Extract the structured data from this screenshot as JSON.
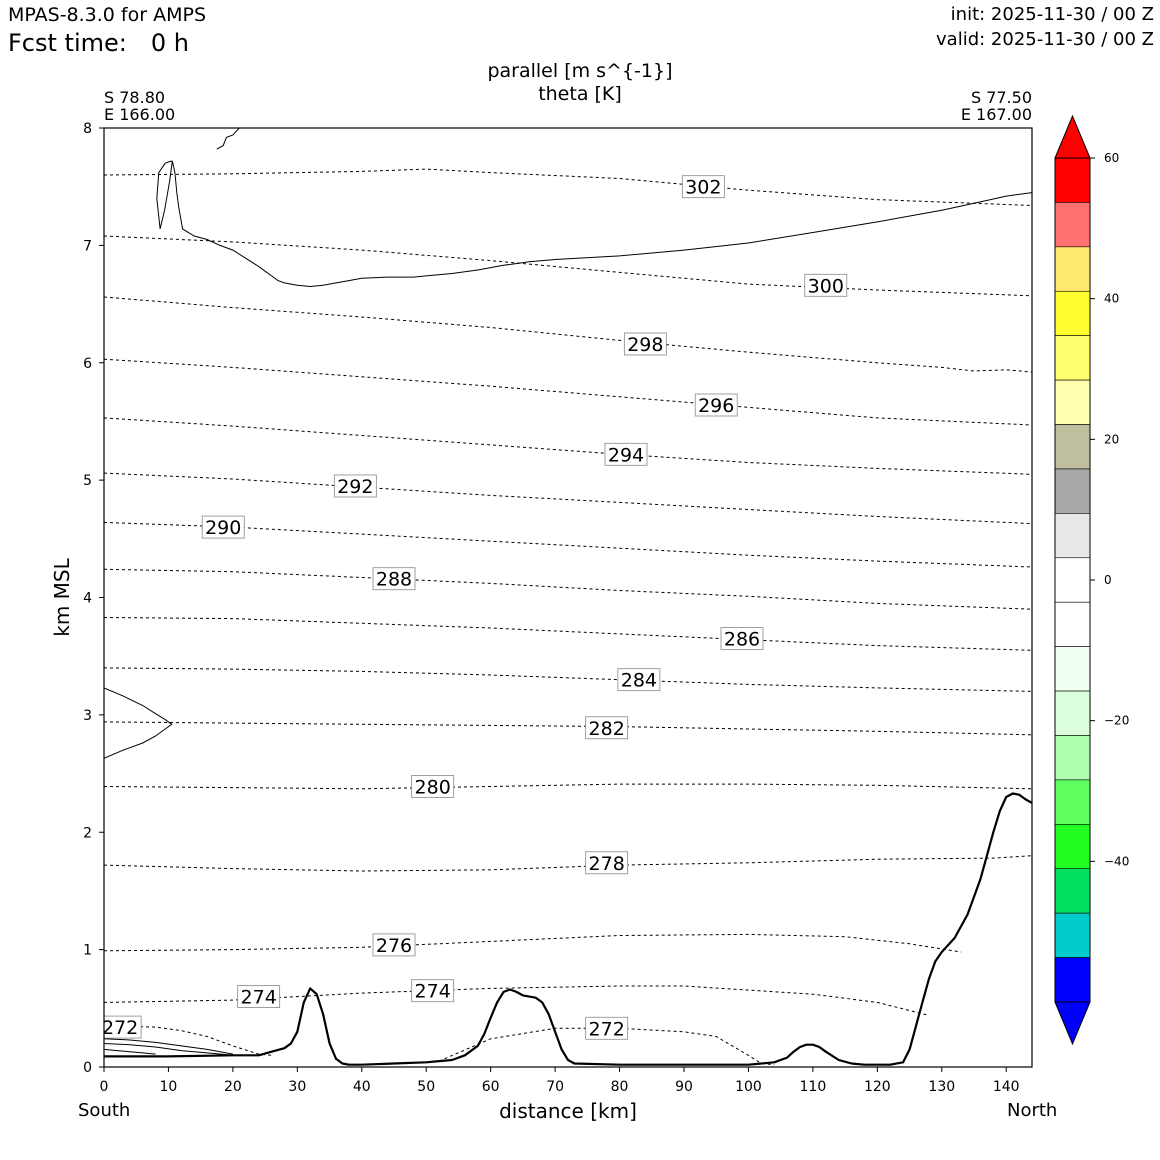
{
  "header": {
    "model": "MPAS-8.3.0 for AMPS",
    "fcst_label": "Fcst time:",
    "fcst_value": "0 h",
    "init": "init: 2025-11-30 / 00 Z",
    "valid": "valid: 2025-11-30 / 00 Z"
  },
  "corners": {
    "left_lat": "S 78.80",
    "left_lon": "E 166.00",
    "right_lat": "S 77.50",
    "right_lon": "E 167.00"
  },
  "directions": {
    "left": "South",
    "right": "North"
  },
  "chart_data": {
    "type": "line",
    "title": "parallel [m s^{-1}]",
    "subtitle": "theta [K]",
    "xlabel": "distance [km]",
    "ylabel": "km MSL",
    "xlim": [
      0,
      144
    ],
    "ylim": [
      0,
      8
    ],
    "xticks": [
      0,
      10,
      20,
      30,
      40,
      50,
      60,
      70,
      80,
      90,
      100,
      110,
      120,
      130,
      140
    ],
    "yticks": [
      0,
      1,
      2,
      3,
      4,
      5,
      6,
      7,
      8
    ],
    "terrain": {
      "name": "terrain height",
      "x": [
        0,
        10,
        20,
        24,
        26,
        28,
        29,
        30,
        31,
        32,
        33,
        34,
        35,
        36,
        37,
        38,
        40,
        45,
        50,
        52,
        54,
        56,
        58,
        59,
        60,
        61,
        62,
        63,
        64,
        65,
        66,
        67,
        68,
        69,
        70,
        71,
        72,
        73,
        80,
        90,
        100,
        104,
        106,
        107,
        108,
        109,
        110,
        111,
        112,
        114,
        116,
        118,
        120,
        122,
        124,
        125,
        126,
        127,
        128,
        129,
        130,
        132,
        134,
        136,
        137,
        138,
        139,
        140,
        141,
        142,
        143,
        144
      ],
      "y": [
        0.09,
        0.09,
        0.1,
        0.1,
        0.13,
        0.16,
        0.2,
        0.3,
        0.55,
        0.67,
        0.62,
        0.45,
        0.2,
        0.07,
        0.03,
        0.02,
        0.02,
        0.03,
        0.04,
        0.05,
        0.06,
        0.1,
        0.18,
        0.28,
        0.42,
        0.55,
        0.64,
        0.66,
        0.64,
        0.61,
        0.6,
        0.59,
        0.55,
        0.45,
        0.3,
        0.15,
        0.06,
        0.03,
        0.02,
        0.02,
        0.02,
        0.04,
        0.08,
        0.13,
        0.17,
        0.19,
        0.19,
        0.17,
        0.13,
        0.06,
        0.03,
        0.02,
        0.02,
        0.02,
        0.04,
        0.15,
        0.35,
        0.55,
        0.75,
        0.9,
        0.98,
        1.1,
        1.3,
        1.6,
        1.8,
        2.0,
        2.18,
        2.3,
        2.33,
        2.32,
        2.28,
        2.25
      ]
    },
    "isentropes": [
      {
        "value": 272,
        "x": [
          0,
          8,
          12,
          16,
          20,
          24,
          26
        ],
        "y": [
          0.35,
          0.34,
          0.31,
          0.26,
          0.18,
          0.11,
          0.1
        ],
        "labels": [
          [
            2.5,
            0.34
          ]
        ]
      },
      {
        "value": 272,
        "x": [
          52,
          60,
          70,
          80,
          90,
          95,
          100,
          102,
          104
        ],
        "y": [
          0.05,
          0.24,
          0.33,
          0.33,
          0.3,
          0.26,
          0.1,
          0.03,
          0.02
        ],
        "labels": [
          [
            78,
            0.33
          ]
        ]
      },
      {
        "value": 274,
        "x": [
          0,
          10,
          20,
          30,
          40,
          60,
          80,
          90,
          110,
          120,
          128
        ],
        "y": [
          0.55,
          0.56,
          0.57,
          0.6,
          0.63,
          0.67,
          0.69,
          0.69,
          0.62,
          0.55,
          0.44
        ],
        "labels": [
          [
            24,
            0.6
          ],
          [
            51,
            0.65
          ]
        ]
      },
      {
        "value": 276,
        "x": [
          0,
          20,
          40,
          60,
          80,
          100,
          115,
          125,
          133
        ],
        "y": [
          0.99,
          1.0,
          1.02,
          1.07,
          1.12,
          1.13,
          1.11,
          1.05,
          0.98
        ],
        "labels": [
          [
            45,
            1.04
          ]
        ]
      },
      {
        "value": 278,
        "x": [
          0,
          20,
          40,
          60,
          80,
          100,
          120,
          138,
          144
        ],
        "y": [
          1.72,
          1.69,
          1.67,
          1.68,
          1.72,
          1.74,
          1.77,
          1.78,
          1.8
        ],
        "labels": [
          [
            78,
            1.74
          ]
        ]
      },
      {
        "value": 280,
        "x": [
          0,
          20,
          40,
          60,
          80,
          100,
          120,
          144
        ],
        "y": [
          2.39,
          2.38,
          2.37,
          2.39,
          2.41,
          2.41,
          2.4,
          2.37
        ],
        "labels": [
          [
            51,
            2.39
          ]
        ]
      },
      {
        "value": 282,
        "x": [
          0,
          20,
          40,
          60,
          80,
          100,
          120,
          144
        ],
        "y": [
          2.94,
          2.93,
          2.92,
          2.91,
          2.9,
          2.88,
          2.86,
          2.83
        ],
        "labels": [
          [
            78,
            2.89
          ]
        ]
      },
      {
        "value": 284,
        "x": [
          0,
          20,
          40,
          60,
          80,
          100,
          120,
          144
        ],
        "y": [
          3.4,
          3.39,
          3.37,
          3.34,
          3.3,
          3.26,
          3.23,
          3.2
        ],
        "labels": [
          [
            83,
            3.3
          ]
        ]
      },
      {
        "value": 286,
        "x": [
          0,
          20,
          40,
          60,
          80,
          100,
          120,
          144
        ],
        "y": [
          3.83,
          3.82,
          3.78,
          3.74,
          3.69,
          3.64,
          3.59,
          3.55
        ],
        "labels": [
          [
            99,
            3.65
          ]
        ]
      },
      {
        "value": 288,
        "x": [
          0,
          20,
          40,
          60,
          80,
          100,
          120,
          144
        ],
        "y": [
          4.24,
          4.22,
          4.17,
          4.12,
          4.06,
          4.01,
          3.95,
          3.9
        ],
        "labels": [
          [
            45,
            4.16
          ]
        ]
      },
      {
        "value": 290,
        "x": [
          0,
          20,
          40,
          60,
          80,
          100,
          120,
          144
        ],
        "y": [
          4.64,
          4.6,
          4.54,
          4.48,
          4.42,
          4.36,
          4.31,
          4.26
        ],
        "labels": [
          [
            18.5,
            4.6
          ]
        ]
      },
      {
        "value": 292,
        "x": [
          0,
          20,
          40,
          60,
          80,
          100,
          120,
          144
        ],
        "y": [
          5.06,
          5.01,
          4.94,
          4.87,
          4.81,
          4.75,
          4.69,
          4.63
        ],
        "labels": [
          [
            39,
            4.95
          ]
        ]
      },
      {
        "value": 294,
        "x": [
          0,
          20,
          40,
          60,
          80,
          100,
          120,
          144
        ],
        "y": [
          5.53,
          5.46,
          5.38,
          5.3,
          5.22,
          5.15,
          5.1,
          5.05
        ],
        "labels": [
          [
            81,
            5.22
          ]
        ]
      },
      {
        "value": 296,
        "x": [
          0,
          20,
          40,
          60,
          80,
          100,
          120,
          144
        ],
        "y": [
          6.03,
          5.96,
          5.88,
          5.8,
          5.71,
          5.62,
          5.53,
          5.47
        ],
        "labels": [
          [
            95,
            5.64
          ]
        ]
      },
      {
        "value": 298,
        "x": [
          0,
          20,
          40,
          60,
          80,
          100,
          120,
          130,
          135,
          140,
          144
        ],
        "y": [
          6.56,
          6.47,
          6.39,
          6.3,
          6.19,
          6.09,
          6.0,
          5.96,
          5.93,
          5.94,
          5.92
        ],
        "labels": [
          [
            84,
            6.16
          ]
        ]
      },
      {
        "value": 300,
        "x": [
          0,
          20,
          40,
          60,
          80,
          100,
          120,
          144
        ],
        "y": [
          7.08,
          7.03,
          6.96,
          6.87,
          6.77,
          6.67,
          6.62,
          6.57
        ],
        "labels": [
          [
            112,
            6.66
          ]
        ]
      },
      {
        "value": 302,
        "x": [
          0,
          20,
          40,
          50,
          60,
          80,
          100,
          120,
          144
        ],
        "y": [
          7.6,
          7.61,
          7.63,
          7.65,
          7.62,
          7.57,
          7.47,
          7.39,
          7.34
        ],
        "labels": [
          [
            93,
            7.5
          ]
        ]
      }
    ],
    "wind_contours": [
      {
        "name": "upper",
        "x": [
          17.5,
          18.5,
          19,
          20,
          21,
          22
        ],
        "y": [
          7.82,
          7.85,
          7.92,
          7.94,
          8.0,
          8.0
        ]
      },
      {
        "name": "upper",
        "x": [
          10.5,
          9.5,
          8.5,
          8.2,
          8.7,
          9.4,
          10.2,
          10.6,
          11.0,
          11.3,
          11.6,
          12.2,
          14,
          16,
          18,
          20,
          22,
          24,
          25,
          26,
          27,
          28,
          30,
          32,
          34,
          36,
          38,
          40,
          44,
          48,
          50,
          54,
          58,
          62,
          66,
          70,
          80,
          90,
          100,
          110,
          120,
          130,
          136,
          140,
          144
        ],
        "y": [
          7.72,
          7.7,
          7.62,
          7.4,
          7.14,
          7.3,
          7.55,
          7.72,
          7.62,
          7.45,
          7.32,
          7.14,
          7.08,
          7.05,
          7.0,
          6.96,
          6.89,
          6.82,
          6.78,
          6.74,
          6.7,
          6.68,
          6.66,
          6.65,
          6.66,
          6.68,
          6.7,
          6.72,
          6.73,
          6.73,
          6.74,
          6.76,
          6.79,
          6.83,
          6.86,
          6.88,
          6.91,
          6.96,
          7.02,
          7.11,
          7.2,
          7.3,
          7.37,
          7.42,
          7.45
        ]
      },
      {
        "name": "mid",
        "x": [
          0,
          3,
          6,
          8,
          9.5,
          10.5,
          9.5,
          8,
          6,
          3,
          0
        ],
        "y": [
          3.23,
          3.16,
          3.08,
          3.01,
          2.96,
          2.92,
          2.88,
          2.82,
          2.76,
          2.7,
          2.63
        ]
      },
      {
        "name": "low",
        "x": [
          0,
          4,
          8,
          12,
          16,
          20
        ],
        "y": [
          0.24,
          0.23,
          0.21,
          0.18,
          0.15,
          0.11
        ]
      },
      {
        "name": "low",
        "x": [
          0,
          4,
          8,
          12,
          16,
          20
        ],
        "y": [
          0.2,
          0.19,
          0.17,
          0.14,
          0.12,
          0.1
        ]
      },
      {
        "name": "low",
        "x": [
          0,
          2,
          4,
          6,
          8
        ],
        "y": [
          0.15,
          0.14,
          0.13,
          0.12,
          0.11
        ]
      }
    ],
    "colorbar": {
      "ticks": [
        "60",
        "40",
        "20",
        "0",
        "−20",
        "−40"
      ],
      "tick_values": [
        60,
        40,
        20,
        0,
        -20,
        -40
      ],
      "range": [
        -60,
        60
      ],
      "colors": [
        "#ff0000",
        "#ff0000",
        "#ff7070",
        "#ffe870",
        "#ffff30",
        "#ffff70",
        "#ffffb0",
        "#c0c0a0",
        "#a9a9a9",
        "#e8e8e8",
        "#ffffff",
        "#ffffff",
        "#f0fff0",
        "#daffda",
        "#b0ffb0",
        "#60ff60",
        "#20ff20",
        "#00e060",
        "#00cccc",
        "#0000ff",
        "#0000ff"
      ]
    }
  }
}
